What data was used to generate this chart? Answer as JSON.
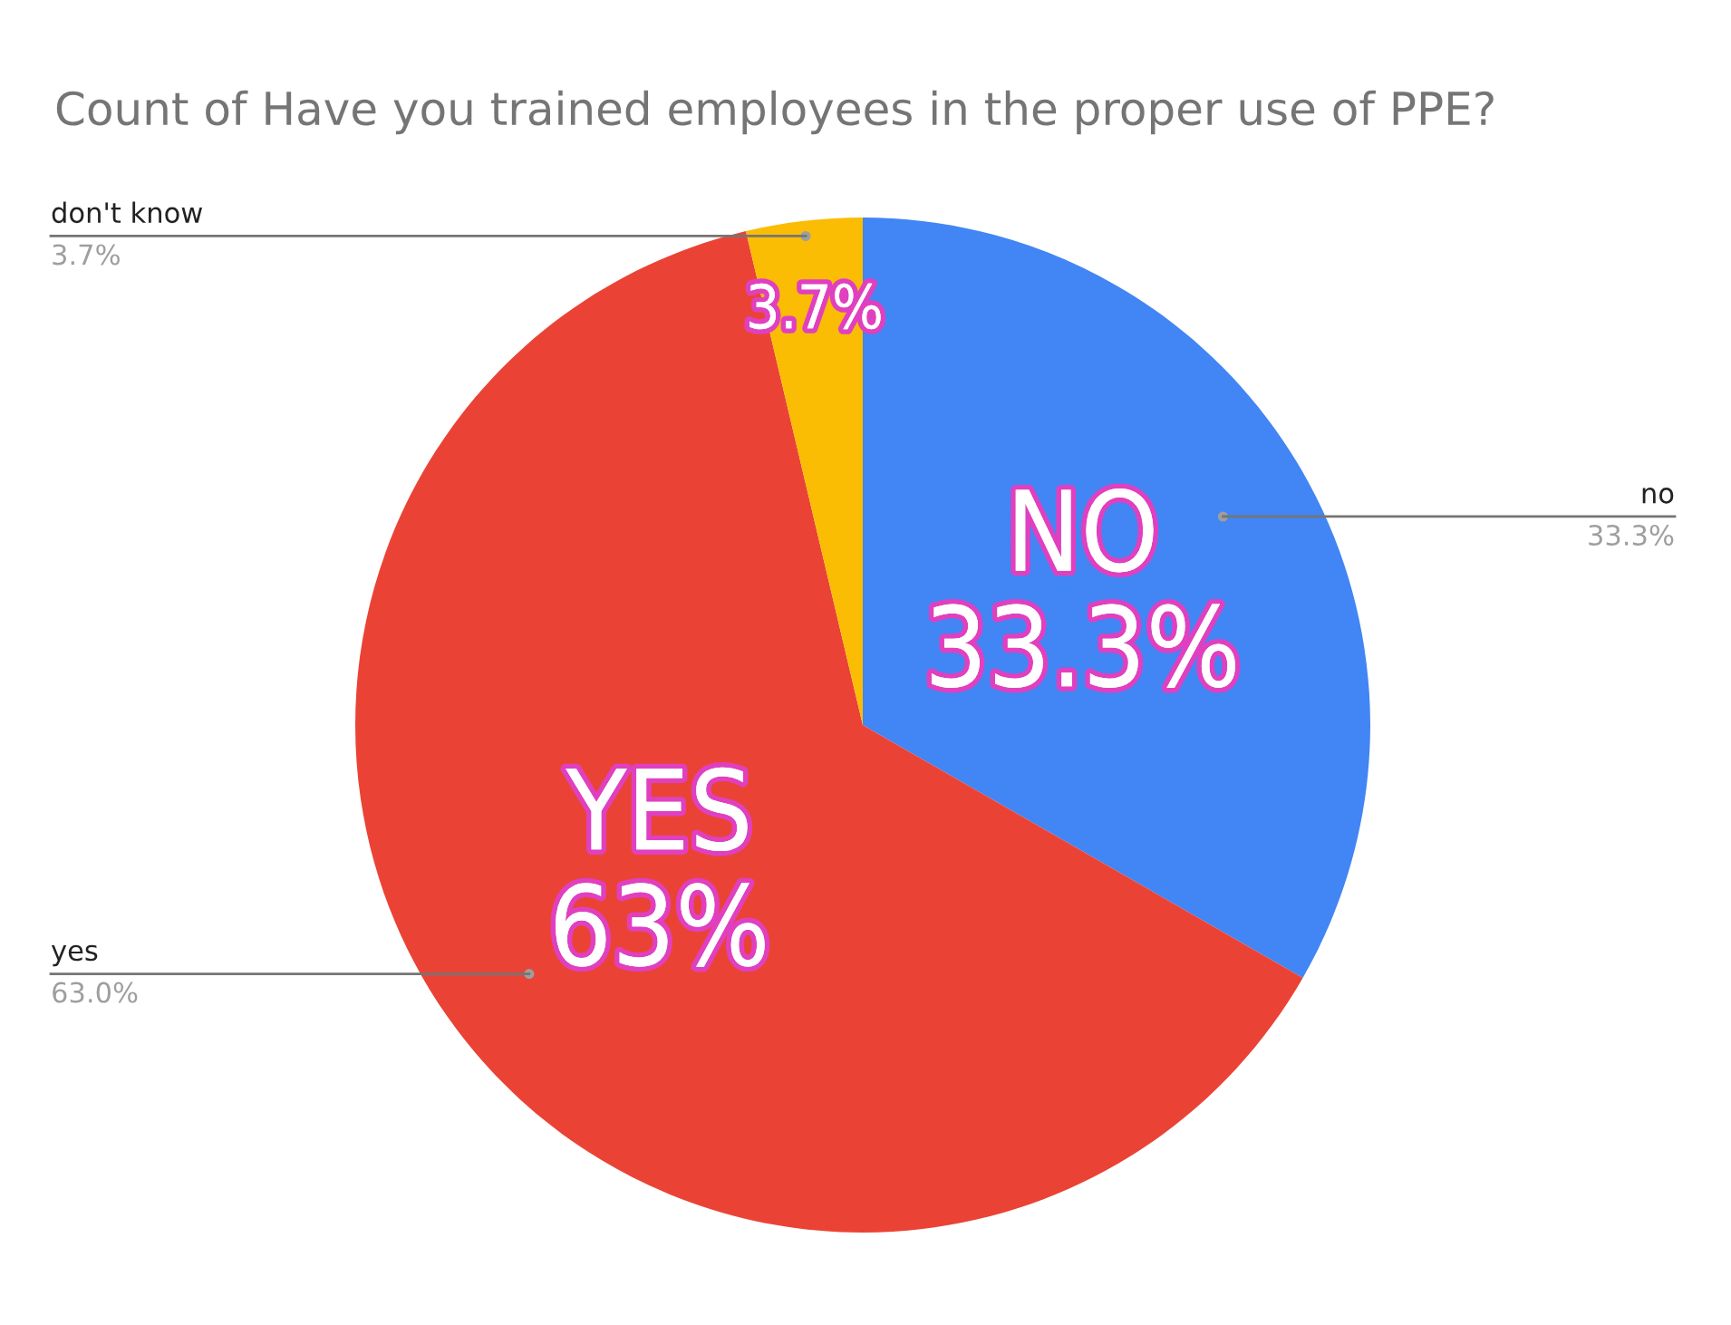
{
  "chart_data": {
    "type": "pie",
    "title": "Count of Have you trained employees in the proper use of PPE?",
    "categories": [
      "no",
      "yes",
      "don't know"
    ],
    "values": [
      33.3,
      63.0,
      3.7
    ],
    "value_labels": [
      "33.3%",
      "63.0%",
      "3.7%"
    ],
    "colors": [
      "#4285f4",
      "#ea4335",
      "#fbbc04"
    ],
    "annotations": [
      "NO\n33.3%",
      "YES\n63%",
      "3.7%"
    ],
    "legend": false
  }
}
